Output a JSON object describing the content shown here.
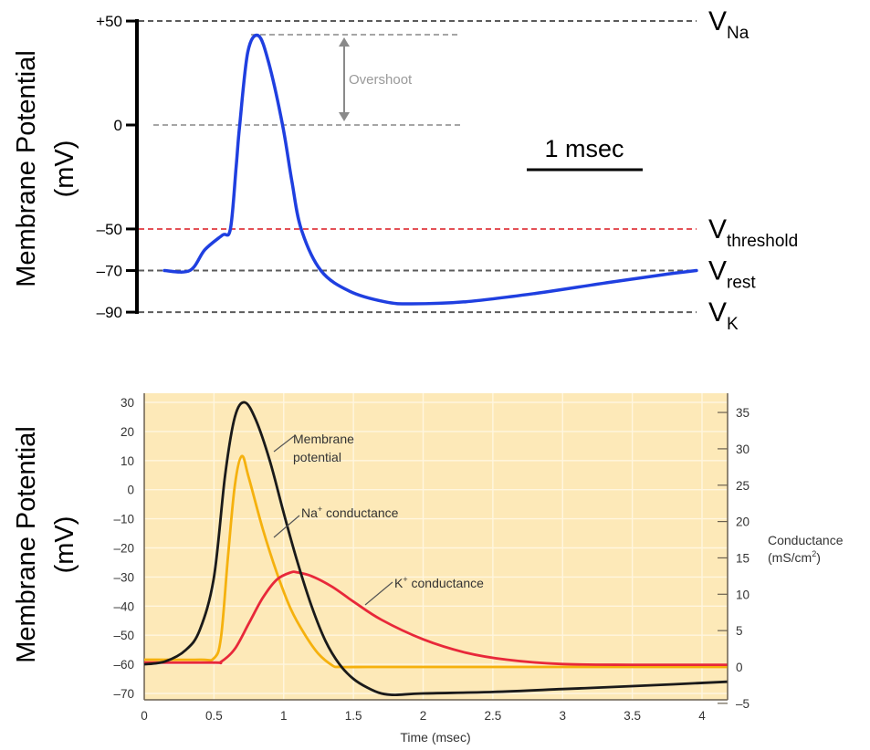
{
  "chart_data": [
    {
      "type": "line",
      "title": "",
      "ylabel": "Membrane Potential",
      "ylabel_unit": "(mV)",
      "xlabel": "",
      "ylim": [
        -90,
        50
      ],
      "y_ticks": [
        "+50",
        "0",
        "–50",
        "–70",
        "–90"
      ],
      "y_tick_values": [
        50,
        0,
        -50,
        -70,
        -90
      ],
      "scale_bar": {
        "label": "1 msec",
        "length_ms": 1
      },
      "reference_lines": [
        {
          "name": "V_Na",
          "label_main": "V",
          "label_sub": "Na",
          "value": 50,
          "color": "#333333"
        },
        {
          "name": "V_threshold",
          "label_main": "V",
          "label_sub": "threshold",
          "value": -50,
          "color": "#e0333a"
        },
        {
          "name": "V_rest",
          "label_main": "V",
          "label_sub": "rest",
          "value": -70,
          "color": "#333333"
        },
        {
          "name": "V_K",
          "label_main": "V",
          "label_sub": "K",
          "value": -90,
          "color": "#333333"
        }
      ],
      "overshoot": {
        "label": "Overshoot",
        "from": 0,
        "to": 43
      },
      "series": [
        {
          "name": "Membrane potential",
          "color": "#1f3fe0",
          "x": [
            0,
            0.22,
            0.35,
            0.5,
            0.57,
            0.62,
            0.65,
            0.72,
            0.81,
            0.9,
            1.02,
            1.1,
            1.18,
            1.35,
            1.6,
            1.9,
            2.13,
            2.6,
            3.2,
            3.8,
            4.3,
            4.59
          ],
          "y": [
            -70,
            -70,
            -60,
            -53,
            -50,
            -20,
            0,
            35,
            43,
            30,
            0,
            -27,
            -50,
            -70,
            -80,
            -85,
            -86,
            -85,
            -81,
            -76,
            -72,
            -70
          ]
        }
      ]
    },
    {
      "type": "line",
      "title": "",
      "xlabel": "Time (msec)",
      "ylabel": "Membrane Potential",
      "ylabel_unit": "(mV)",
      "ylabel_right": "Conductance",
      "ylabel_right_unit": "(mS/cm",
      "ylabel_right_unit_sup": "2",
      "ylabel_right_unit_end": ")",
      "xlim": [
        0,
        4.18
      ],
      "ylim": [
        -72,
        33
      ],
      "ylim_right": [
        -5.5,
        37
      ],
      "x_ticks": [
        "0",
        "0.5",
        "1",
        "1.5",
        "2",
        "2.5",
        "3",
        "3.5",
        "4"
      ],
      "x_tick_values": [
        0,
        0.5,
        1,
        1.5,
        2,
        2.5,
        3,
        3.5,
        4
      ],
      "y_ticks": [
        "30",
        "20",
        "10",
        "0",
        "–10",
        "–20",
        "–30",
        "–40",
        "–50",
        "–60",
        "–70"
      ],
      "y_tick_values": [
        30,
        20,
        10,
        0,
        -10,
        -20,
        -30,
        -40,
        -50,
        -60,
        -70
      ],
      "y_ticks_right": [
        "35",
        "30",
        "25",
        "20",
        "15",
        "10",
        "5",
        "0",
        "–5"
      ],
      "y_tick_values_right": [
        35,
        30,
        25,
        20,
        15,
        10,
        5,
        0,
        -5
      ],
      "grid": true,
      "background": "#fde9b8",
      "annotations": [
        {
          "text_lines": [
            "Membrane",
            "potential"
          ],
          "target": "Membrane potential"
        },
        {
          "text": "Na",
          "sup": "+",
          "text_end": " conductance",
          "target": "Na+ conductance"
        },
        {
          "text": "K",
          "sup": "+",
          "text_end": " conductance",
          "target": "K+ conductance"
        }
      ],
      "series": [
        {
          "name": "Membrane potential",
          "axis": "left",
          "color": "#1a1a1a",
          "x": [
            0,
            0.15,
            0.3,
            0.4,
            0.5,
            0.58,
            0.65,
            0.72,
            0.8,
            0.9,
            1.0,
            1.1,
            1.2,
            1.3,
            1.4,
            1.5,
            1.6,
            1.7,
            1.8,
            2.0,
            2.5,
            3.0,
            3.5,
            4.18
          ],
          "y": [
            -60,
            -59,
            -55,
            -48,
            -30,
            5,
            25,
            30,
            24,
            10,
            -8,
            -25,
            -40,
            -52,
            -60,
            -65,
            -68,
            -70,
            -70.5,
            -70,
            -69.5,
            -68.5,
            -67.5,
            -66
          ]
        },
        {
          "name": "Na+ conductance",
          "axis": "right",
          "color": "#f5b10e",
          "x": [
            0,
            0.4,
            0.5,
            0.55,
            0.6,
            0.65,
            0.7,
            0.75,
            0.85,
            0.95,
            1.05,
            1.15,
            1.25,
            1.35,
            1.4,
            1.6,
            2.0,
            3.0,
            4.18
          ],
          "y": [
            1,
            1,
            1.2,
            4,
            15,
            25,
            29,
            26,
            19,
            13,
            8,
            4.5,
            1.8,
            0.2,
            0,
            0,
            0,
            0,
            0
          ]
        },
        {
          "name": "K+ conductance",
          "axis": "right",
          "color": "#e8283a",
          "x": [
            0,
            0.5,
            0.55,
            0.65,
            0.75,
            0.85,
            0.95,
            1.05,
            1.1,
            1.2,
            1.35,
            1.5,
            1.7,
            2.0,
            2.3,
            2.6,
            3.0,
            3.5,
            4.18
          ],
          "y": [
            0.6,
            0.6,
            0.7,
            2.5,
            6,
            9.5,
            12,
            13,
            13,
            12.5,
            11,
            9,
            6.5,
            3.8,
            2,
            1,
            0.4,
            0.3,
            0.3
          ]
        }
      ]
    }
  ]
}
